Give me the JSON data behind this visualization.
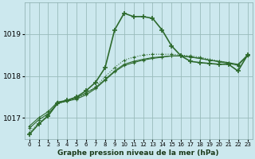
{
  "title": "Graphe pression niveau de la mer (hPa)",
  "bg_color": "#cce8ee",
  "grid_color": "#99bbbb",
  "line_color": "#2d6a2d",
  "xlim": [
    -0.5,
    23.5
  ],
  "ylim": [
    1016.5,
    1019.75
  ],
  "yticks": [
    1017,
    1018,
    1019
  ],
  "xticks": [
    0,
    1,
    2,
    3,
    4,
    5,
    6,
    7,
    8,
    9,
    10,
    11,
    12,
    13,
    14,
    15,
    16,
    17,
    18,
    19,
    20,
    21,
    22,
    23
  ],
  "series": [
    {
      "y": [
        1016.6,
        1016.85,
        1017.05,
        1017.35,
        1017.42,
        1017.5,
        1017.65,
        1017.85,
        1018.2,
        1019.1,
        1019.5,
        1019.42,
        1019.42,
        1019.38,
        1019.1,
        1018.72,
        1018.48,
        1018.35,
        1018.32,
        1018.3,
        1018.28,
        1018.28,
        1018.12,
        1018.5
      ],
      "lw": 1.2,
      "marker": "+",
      "ms": 5,
      "mew": 1.2,
      "ls": "-",
      "dotted": false
    },
    {
      "y": [
        1016.75,
        1016.95,
        1017.1,
        1017.35,
        1017.4,
        1017.45,
        1017.55,
        1017.7,
        1017.9,
        1018.1,
        1018.25,
        1018.32,
        1018.38,
        1018.42,
        1018.45,
        1018.48,
        1018.48,
        1018.45,
        1018.42,
        1018.38,
        1018.35,
        1018.32,
        1018.28,
        1018.5
      ],
      "lw": 0.8,
      "marker": "+",
      "ms": 3,
      "mew": 0.8,
      "ls": "-",
      "dotted": false
    },
    {
      "y": [
        1016.8,
        1017.0,
        1017.15,
        1017.38,
        1017.42,
        1017.48,
        1017.6,
        1017.72,
        1017.92,
        1018.12,
        1018.28,
        1018.35,
        1018.4,
        1018.44,
        1018.46,
        1018.48,
        1018.48,
        1018.46,
        1018.42,
        1018.38,
        1018.34,
        1018.3,
        1018.26,
        1018.48
      ],
      "lw": 0.8,
      "marker": "+",
      "ms": 3,
      "mew": 0.8,
      "ls": "-",
      "dotted": false
    },
    {
      "y": [
        1016.65,
        1016.88,
        1017.05,
        1017.35,
        1017.4,
        1017.46,
        1017.58,
        1017.75,
        1017.98,
        1018.2,
        1018.38,
        1018.45,
        1018.5,
        1018.52,
        1018.52,
        1018.52,
        1018.5,
        1018.48,
        1018.45,
        1018.4,
        1018.36,
        1018.32,
        1018.24,
        1018.52
      ],
      "lw": 0.8,
      "marker": "+",
      "ms": 3,
      "mew": 0.8,
      "ls": ":",
      "dotted": true
    }
  ]
}
